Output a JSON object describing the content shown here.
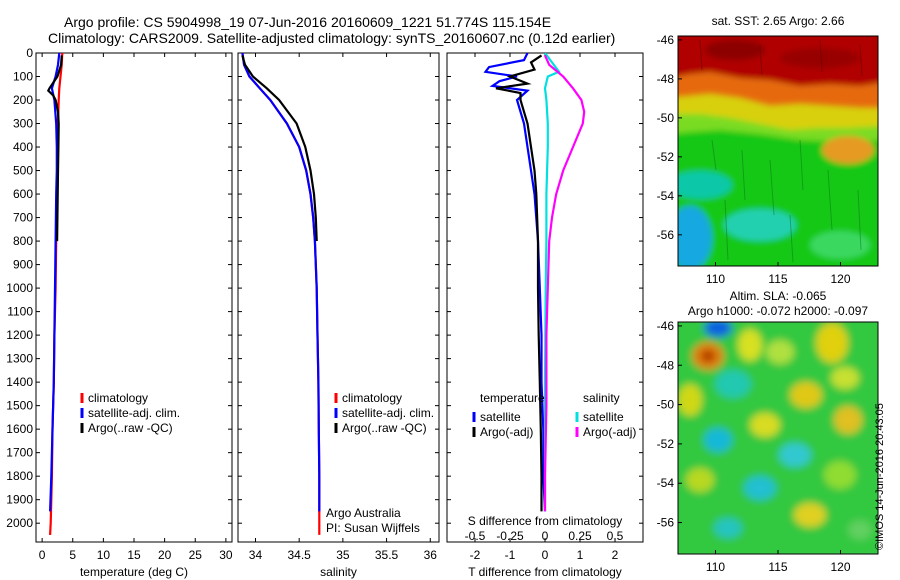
{
  "header": {
    "line1": "Argo profile: CS 5904998_19 07-Jun-2016 20160609_1221 51.774S 115.154E",
    "line2": "Climatology: CARS2009. Satellite-adjusted climatology: synTS_20160607.nc (0.12d earlier)"
  },
  "credit": "©IMOS 14-Jun-2016 20:43:05",
  "colors": {
    "climatology": "#ff0000",
    "satellite": "#0000ff",
    "argo": "#000000",
    "sat_salinity": "#00e0e0",
    "argo_salinity": "#ff00ff"
  },
  "chart_data": [
    {
      "type": "line",
      "panel": "temperature",
      "xlabel": "temperature (deg C)",
      "xlim": [
        -1,
        31
      ],
      "xticks": [
        0,
        5,
        10,
        15,
        20,
        25,
        30
      ],
      "ylim": [
        2080,
        0
      ],
      "yticks": [
        0,
        100,
        200,
        300,
        400,
        500,
        600,
        700,
        800,
        900,
        1000,
        1100,
        1200,
        1300,
        1400,
        1500,
        1600,
        1700,
        1800,
        1900,
        2000
      ],
      "legend": {
        "placement": "center-right",
        "entries": [
          "climatology",
          "satellite-adj. clim.",
          "Argo(..raw -QC)"
        ]
      },
      "series": [
        {
          "name": "climatology",
          "color": "#ff0000",
          "depth": [
            0,
            50,
            100,
            150,
            200,
            300,
            400,
            500,
            600,
            800,
            1000,
            1200,
            1400,
            1600,
            1800,
            2000,
            2050
          ],
          "values": [
            3.3,
            3.2,
            3.0,
            2.8,
            2.7,
            2.6,
            2.55,
            2.5,
            2.4,
            2.3,
            2.2,
            2.0,
            1.9,
            1.7,
            1.6,
            1.4,
            1.3
          ]
        },
        {
          "name": "satellite-adj. clim.",
          "color": "#0000ff",
          "depth": [
            0,
            50,
            100,
            150,
            200,
            300,
            400,
            500,
            600,
            800,
            1000,
            1200,
            1400,
            1600,
            1800,
            1950
          ],
          "values": [
            2.8,
            2.6,
            2.2,
            1.6,
            2.0,
            2.3,
            2.4,
            2.4,
            2.3,
            2.2,
            2.1,
            2.0,
            1.9,
            1.7,
            1.5,
            1.3
          ]
        },
        {
          "name": "Argo(..raw -QC)",
          "color": "#000000",
          "depth": [
            10,
            50,
            100,
            150,
            160,
            180,
            200,
            250,
            300,
            400,
            500,
            600,
            700,
            800
          ],
          "values": [
            3.2,
            3.1,
            2.5,
            1.2,
            1.0,
            1.8,
            2.2,
            2.6,
            2.7,
            2.65,
            2.6,
            2.55,
            2.5,
            2.45
          ]
        }
      ]
    },
    {
      "type": "line",
      "panel": "salinity",
      "xlabel": "salinity",
      "xlim": [
        33.8,
        36.1
      ],
      "xticks": [
        34,
        34.5,
        35,
        35.5,
        36
      ],
      "ylim": [
        2080,
        0
      ],
      "legend": {
        "placement": "center-right",
        "entries": [
          "climatology",
          "satellite-adj. clim.",
          "Argo(..raw -QC)"
        ]
      },
      "annotation": [
        "Argo Australia",
        "PI: Susan Wijffels"
      ],
      "series": [
        {
          "name": "climatology",
          "color": "#ff0000",
          "depth": [
            0,
            50,
            100,
            150,
            200,
            300,
            400,
            500,
            600,
            700,
            800,
            1000,
            1200,
            1400,
            1600,
            1800,
            2000,
            2050
          ],
          "values": [
            33.85,
            33.87,
            33.93,
            34.05,
            34.17,
            34.36,
            34.5,
            34.58,
            34.63,
            34.66,
            34.68,
            34.7,
            34.71,
            34.72,
            34.725,
            34.73,
            34.73,
            34.73
          ]
        },
        {
          "name": "satellite-adj. clim.",
          "color": "#0000ff",
          "depth": [
            0,
            50,
            100,
            150,
            200,
            300,
            400,
            500,
            600,
            700,
            800,
            1000,
            1200,
            1400,
            1600,
            1800,
            1950
          ],
          "values": [
            33.85,
            33.87,
            33.93,
            34.05,
            34.17,
            34.36,
            34.5,
            34.58,
            34.63,
            34.66,
            34.68,
            34.7,
            34.71,
            34.72,
            34.725,
            34.73,
            34.73
          ]
        },
        {
          "name": "Argo(..raw -QC)",
          "color": "#000000",
          "depth": [
            10,
            50,
            100,
            150,
            200,
            300,
            400,
            500,
            600,
            700,
            800
          ],
          "values": [
            33.85,
            33.88,
            33.97,
            34.13,
            34.27,
            34.47,
            34.57,
            34.63,
            34.67,
            34.69,
            34.7
          ]
        }
      ]
    },
    {
      "type": "line",
      "panel": "difference",
      "xlabel": "T difference from climatology",
      "xlim": [
        -2.8,
        2.8
      ],
      "xticks": [
        -2,
        -1,
        0,
        1,
        2
      ],
      "top_xlabel": "S difference from climatology",
      "top_xticks": [
        "-0.5",
        "-0.25",
        "0",
        "0.25",
        "0.5"
      ],
      "top_xvalues": [
        -0.5,
        -0.25,
        0,
        0.25,
        0.5
      ],
      "ylim": [
        2080,
        0
      ],
      "legend": {
        "placement": "center-right",
        "group_titles": [
          "temperature",
          "salinity"
        ],
        "entries": [
          "satellite",
          "Argo(-adj)",
          "satellite",
          "Argo(-adj)"
        ]
      },
      "series": [
        {
          "name": "satellite",
          "group": "temperature",
          "color": "#0000ff",
          "depth": [
            0,
            30,
            60,
            80,
            100,
            120,
            140,
            160,
            200,
            300,
            400,
            500,
            600,
            800,
            1000,
            1200,
            1400,
            1600,
            1800,
            1950
          ],
          "values": [
            -0.5,
            -0.6,
            -1.6,
            -1.7,
            -0.8,
            -1.3,
            -1.5,
            -0.5,
            -0.8,
            -0.6,
            -0.5,
            -0.4,
            -0.3,
            -0.2,
            -0.15,
            -0.1,
            -0.1,
            -0.05,
            -0.05,
            0
          ]
        },
        {
          "name": "Argo(-adj)",
          "group": "temperature",
          "color": "#000000",
          "depth": [
            10,
            40,
            70,
            100,
            130,
            150,
            170,
            200,
            250,
            300,
            400,
            500,
            600,
            800,
            1000,
            1200,
            1400,
            1600,
            1800,
            1950
          ],
          "values": [
            -0.1,
            -0.4,
            -0.3,
            -1.0,
            -0.5,
            -1.4,
            -0.7,
            -0.7,
            -0.6,
            -0.5,
            -0.4,
            -0.3,
            -0.25,
            -0.2,
            -0.2,
            -0.18,
            -0.15,
            -0.12,
            -0.1,
            -0.1
          ]
        },
        {
          "name": "satellite",
          "group": "salinity",
          "color": "#00e0e0",
          "depth": [
            0,
            40,
            80,
            100,
            150,
            200,
            300,
            400,
            600,
            800,
            1000,
            1400,
            1800,
            1950
          ],
          "values": [
            0,
            0.05,
            0.1,
            0.02,
            0,
            0.01,
            0.02,
            0.02,
            0.01,
            0.01,
            0.005,
            0,
            0,
            0
          ]
        },
        {
          "name": "Argo(-adj)",
          "group": "salinity",
          "color": "#ff00ff",
          "depth": [
            10,
            50,
            100,
            150,
            200,
            250,
            300,
            400,
            500,
            600,
            700,
            800,
            1000,
            1200,
            1500,
            1800,
            1950
          ],
          "values": [
            0,
            0.03,
            0.13,
            0.2,
            0.26,
            0.28,
            0.27,
            0.2,
            0.13,
            0.08,
            0.05,
            0.03,
            0.02,
            0.01,
            0.01,
            0,
            0
          ]
        }
      ]
    },
    {
      "type": "heatmap",
      "panel": "sst-map",
      "title": "sat. SST: 2.65 Argo: 2.66",
      "xlim": [
        107,
        123
      ],
      "ylim": [
        -57.6,
        -45.8
      ],
      "xticks": [
        110,
        115,
        120
      ],
      "yticks": [
        -46,
        -48,
        -50,
        -52,
        -54,
        -56
      ],
      "marker": {
        "lon": 115.154,
        "lat": -51.774
      }
    },
    {
      "type": "heatmap",
      "panel": "sla-map",
      "title_lines": [
        "Altim. SLA: -0.065",
        "Argo h1000: -0.072 h2000: -0.097"
      ],
      "xlim": [
        107,
        123
      ],
      "ylim": [
        -57.6,
        -45.8
      ],
      "xticks": [
        110,
        115,
        120
      ],
      "yticks": [
        -46,
        -48,
        -50,
        -52,
        -54,
        -56
      ],
      "marker": {
        "lon": 115.154,
        "lat": -51.774
      }
    }
  ]
}
